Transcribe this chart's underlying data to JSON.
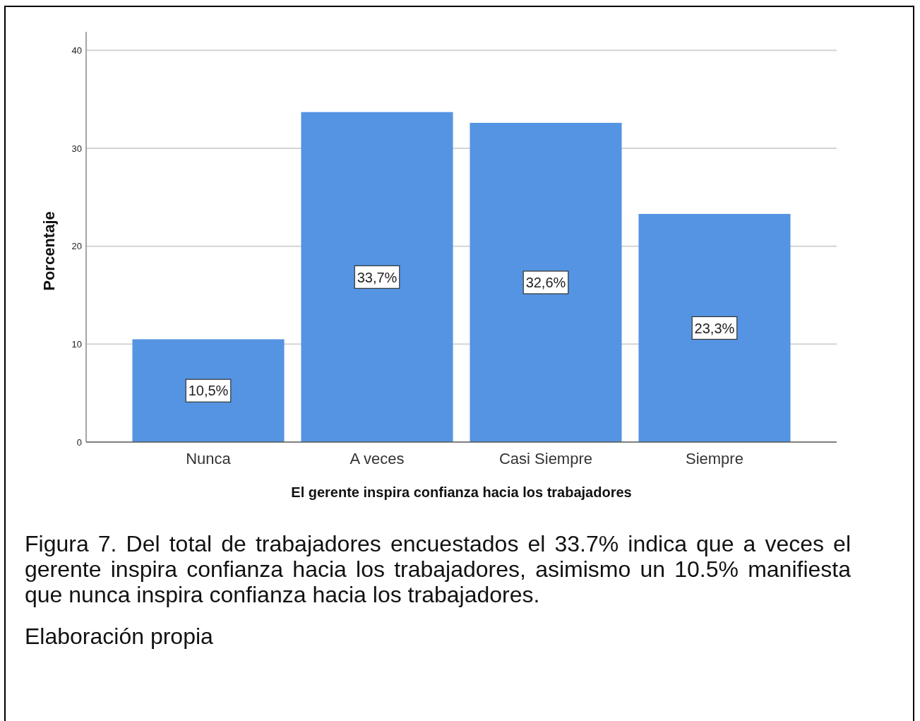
{
  "chart_data": {
    "type": "bar",
    "xlabel": "El gerente inspira confianza hacia los trabajadores",
    "ylabel": "Porcentaje",
    "categories": [
      "Nunca",
      "A veces",
      "Casi Siempre",
      "Siempre"
    ],
    "values": [
      10.5,
      33.7,
      32.6,
      23.3
    ],
    "color": "#5594e2",
    "value_labels": [
      "10,5%",
      "33,7%",
      "32,6%",
      "23,3%"
    ],
    "ylim": [
      0,
      41.9
    ],
    "yticks": [
      0,
      10,
      20,
      30,
      40
    ],
    "grid": "y",
    "annotations": [
      "Figura 7. Del total de trabajadores encuestados el 33.7% indica que a veces el gerente inspira confianza hacia los trabajadores, asimismo un 10.5% manifiesta que nunca inspira confianza hacia los trabajadores.",
      "Elaboración propia"
    ]
  }
}
